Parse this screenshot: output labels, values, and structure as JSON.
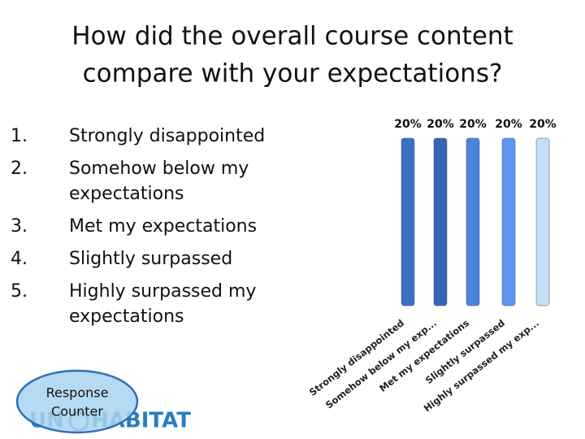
{
  "title": [
    "How did the overall course content",
    "compare with your expectations?"
  ],
  "list": [
    {
      "number": "1.",
      "lines": [
        "Strongly disappointed"
      ]
    },
    {
      "number": "2.",
      "lines": [
        "Somehow below my",
        "expectations"
      ]
    },
    {
      "number": "3.",
      "lines": [
        "Met my expectations"
      ]
    },
    {
      "number": "4.",
      "lines": [
        "Slightly surpassed"
      ]
    },
    {
      "number": "5.",
      "lines": [
        "Highly surpassed my",
        "expectations"
      ]
    }
  ],
  "button": [
    "Response",
    "Counter"
  ],
  "logo": [
    "UN",
    "HABITAT"
  ],
  "chart_data": {
    "type": "bar",
    "categories": [
      "Strongly disappointed",
      "Somehow below my exp...",
      "Met my expectations",
      "Slightly surpassed",
      "Highly surpassed my exp..."
    ],
    "values": [
      20,
      20,
      20,
      20,
      20
    ],
    "value_labels": [
      "20%",
      "20%",
      "20%",
      "20%",
      "20%"
    ],
    "colors": [
      "#3b6fc6",
      "#3a63b3",
      "#4b83db",
      "#5f95ec",
      "#c8def6"
    ],
    "ylim": [
      0,
      20
    ]
  }
}
